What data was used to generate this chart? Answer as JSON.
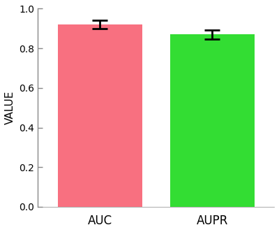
{
  "categories": [
    "AUC",
    "AUPR"
  ],
  "values": [
    0.92,
    0.87
  ],
  "errors": [
    0.022,
    0.022
  ],
  "bar_colors": [
    "#F87080",
    "#33DD33"
  ],
  "bar_width": 0.75,
  "bar_positions": [
    1.0,
    2.0
  ],
  "ylabel": "VALUE",
  "ylim": [
    0.0,
    1.0
  ],
  "yticks": [
    0.0,
    0.2,
    0.4,
    0.6,
    0.8,
    1.0
  ],
  "background_color": "#ffffff",
  "tick_fontsize": 10,
  "label_fontsize": 11,
  "xlabel_fontsize": 12
}
